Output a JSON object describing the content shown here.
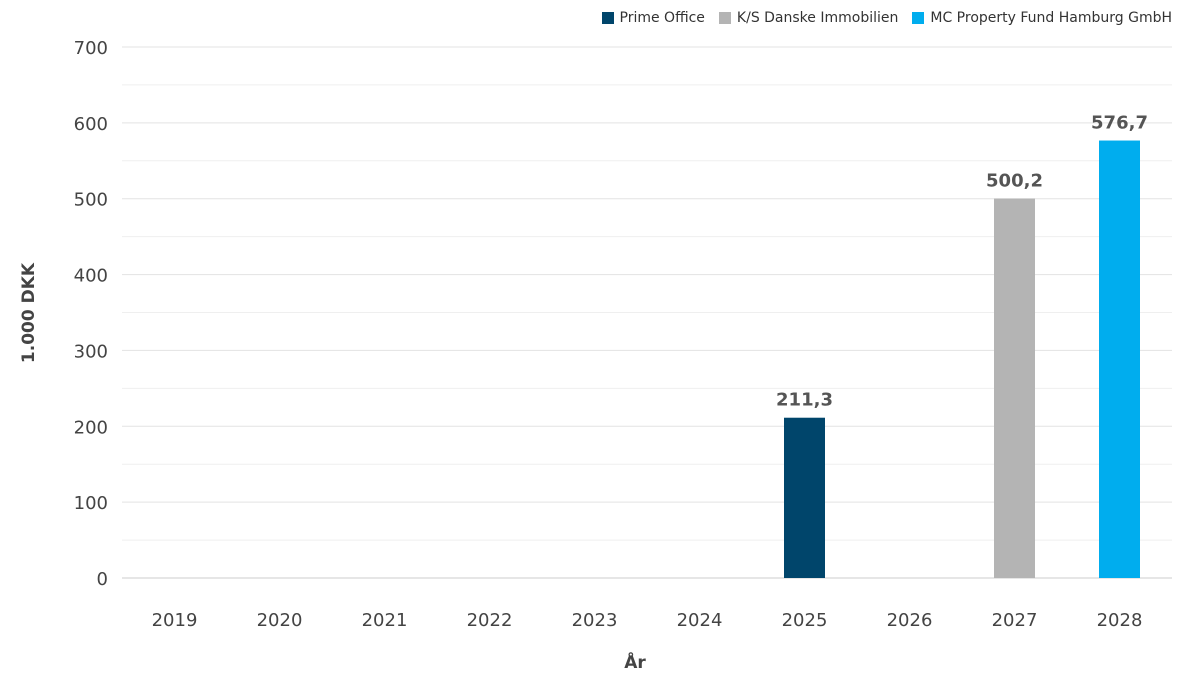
{
  "chart_data": {
    "type": "bar",
    "title": "",
    "xlabel": "År",
    "ylabel": "1.000 DKK",
    "categories": [
      "2019",
      "2020",
      "2021",
      "2022",
      "2023",
      "2024",
      "2025",
      "2026",
      "2027",
      "2028"
    ],
    "ylim": [
      0,
      700
    ],
    "yticks": [
      0,
      100,
      200,
      300,
      400,
      500,
      600,
      700
    ],
    "grid": true,
    "legend_position": "top-right",
    "series": [
      {
        "name": "Prime Office",
        "color": "#00456b",
        "values": [
          null,
          null,
          null,
          null,
          null,
          null,
          211.3,
          null,
          null,
          null
        ],
        "labels": [
          null,
          null,
          null,
          null,
          null,
          null,
          "211,3",
          null,
          null,
          null
        ]
      },
      {
        "name": "K/S Danske Immobilien",
        "color": "#b4b4b4",
        "values": [
          null,
          null,
          null,
          null,
          null,
          null,
          null,
          null,
          500.2,
          null
        ],
        "labels": [
          null,
          null,
          null,
          null,
          null,
          null,
          null,
          null,
          "500,2",
          null
        ]
      },
      {
        "name": "MC Property Fund Hamburg GmbH",
        "color": "#00adee",
        "values": [
          null,
          null,
          null,
          null,
          null,
          null,
          null,
          null,
          null,
          576.7
        ],
        "labels": [
          null,
          null,
          null,
          null,
          null,
          null,
          null,
          null,
          null,
          "576,7"
        ]
      }
    ]
  }
}
